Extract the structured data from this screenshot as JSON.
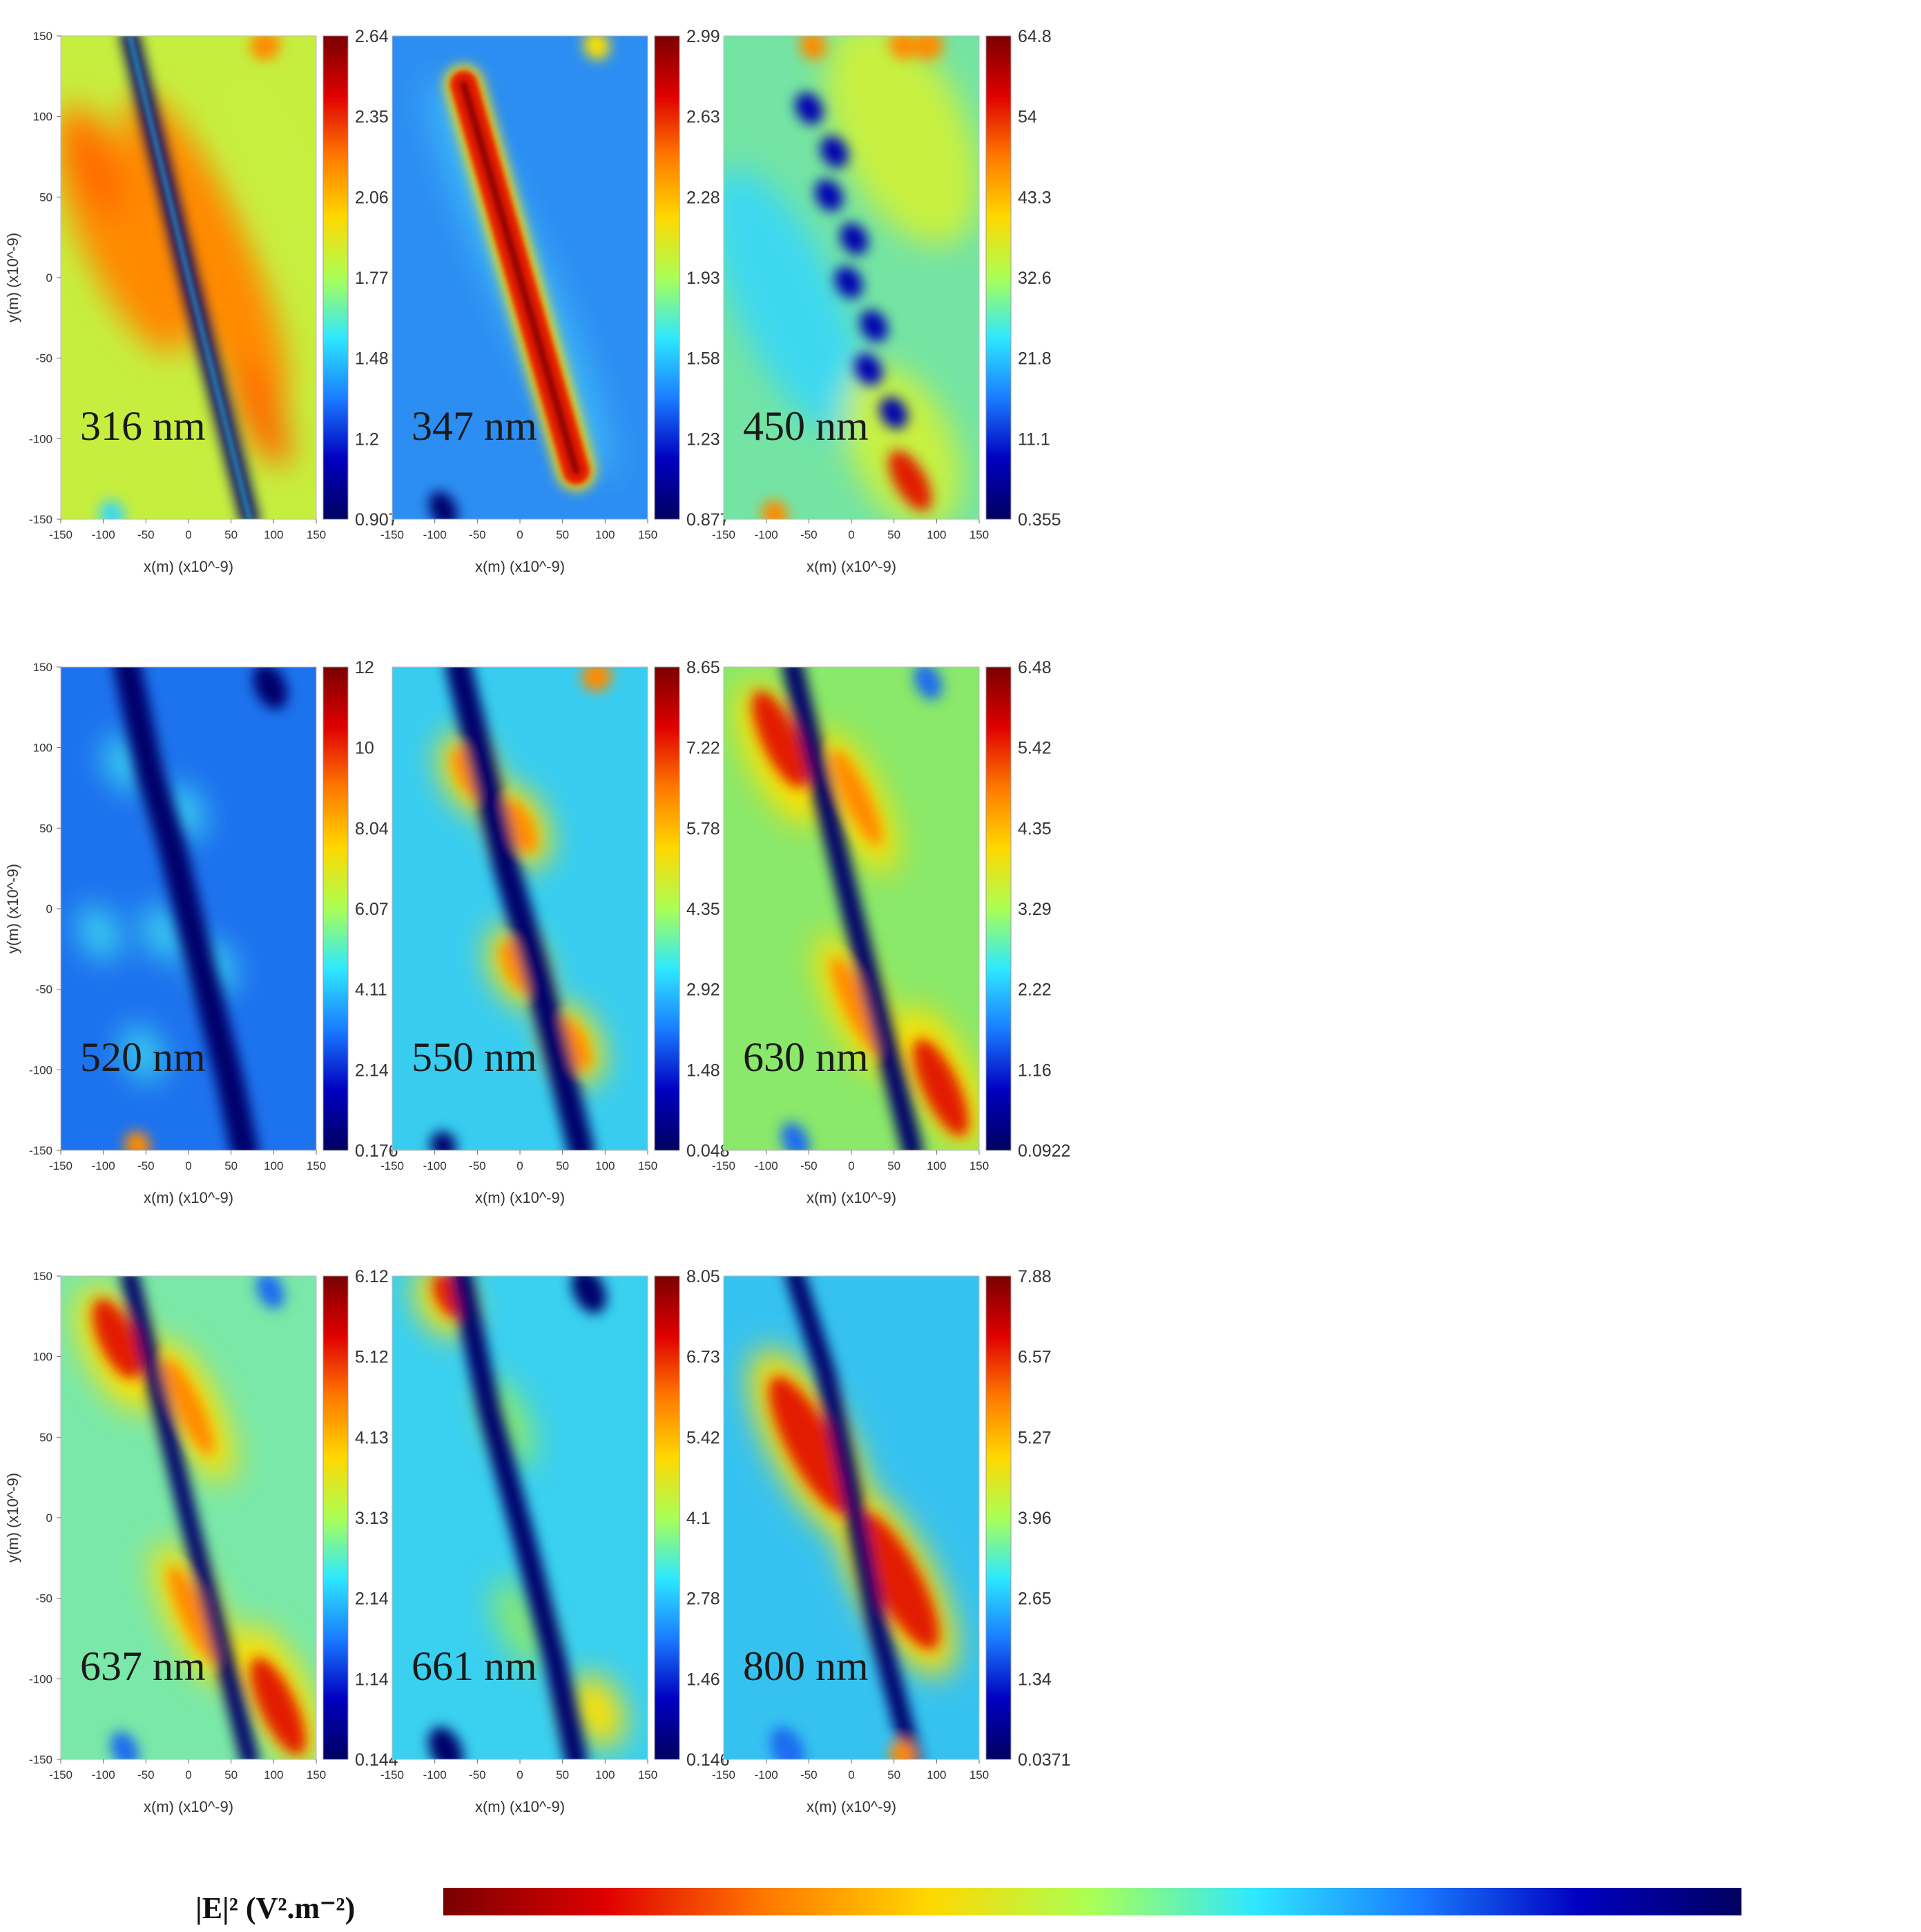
{
  "chart_data": {
    "type": "heatmap",
    "quantity_label": "|E|² (V².m⁻²)",
    "colormap": [
      "#7a0000",
      "#e00000",
      "#ff7a00",
      "#ffd800",
      "#aaff55",
      "#2ee8ff",
      "#1a7cff",
      "#0000c0",
      "#000060"
    ],
    "x_ticks": [
      "-150",
      "-100",
      "-50",
      "0",
      "50",
      "100",
      "150"
    ],
    "y_ticks": [
      "150",
      "100",
      "50",
      "0",
      "-50",
      "-100",
      "-150"
    ],
    "xlabel": "x(m) (x10^-9)",
    "ylabel": "y(m) (x10^-9)",
    "xlim": [
      -150,
      150
    ],
    "ylim": [
      -150,
      150
    ],
    "polarization_label": "E",
    "panels": [
      {
        "wavelength": "316 nm",
        "colorbar_ticks": [
          "2.64",
          "2.35",
          "2.06",
          "1.77",
          "1.48",
          "1.2",
          "0.907"
        ],
        "range": [
          0.907,
          2.64
        ],
        "pattern": "dipole"
      },
      {
        "wavelength": "347 nm",
        "colorbar_ticks": [
          "2.99",
          "2.63",
          "2.28",
          "1.93",
          "1.58",
          "1.23",
          "0.877"
        ],
        "range": [
          0.877,
          2.99
        ],
        "pattern": "hot-rod"
      },
      {
        "wavelength": "450 nm",
        "colorbar_ticks": [
          "64.8",
          "54",
          "43.3",
          "32.6",
          "21.8",
          "11.1",
          "0.355"
        ],
        "range": [
          0.355,
          64.8
        ],
        "pattern": "wavy"
      },
      {
        "wavelength": "520 nm",
        "colorbar_ticks": [
          "12",
          "10",
          "8.04",
          "6.07",
          "4.11",
          "2.14",
          "0.176"
        ],
        "range": [
          0.176,
          12
        ],
        "pattern": "lobes-weak"
      },
      {
        "wavelength": "550 nm",
        "colorbar_ticks": [
          "8.65",
          "7.22",
          "5.78",
          "4.35",
          "2.92",
          "1.48",
          "0.048"
        ],
        "range": [
          0.048,
          8.65
        ],
        "pattern": "lobes"
      },
      {
        "wavelength": "630 nm",
        "colorbar_ticks": [
          "6.48",
          "5.42",
          "4.35",
          "3.29",
          "2.22",
          "1.16",
          "0.0922"
        ],
        "range": [
          0.0922,
          6.48
        ],
        "pattern": "lobes-strong"
      },
      {
        "wavelength": "637 nm",
        "colorbar_ticks": [
          "6.12",
          "5.12",
          "4.13",
          "3.13",
          "2.14",
          "1.14",
          "0.144"
        ],
        "range": [
          0.144,
          6.12
        ],
        "pattern": "lobes-rippled"
      },
      {
        "wavelength": "661 nm",
        "colorbar_ticks": [
          "8.05",
          "6.73",
          "5.42",
          "4.1",
          "2.78",
          "1.46",
          "0.146"
        ],
        "range": [
          0.146,
          8.05
        ],
        "pattern": "line"
      },
      {
        "wavelength": "800 nm",
        "colorbar_ticks": [
          "7.88",
          "6.57",
          "5.27",
          "3.96",
          "2.65",
          "1.34",
          "0.0371"
        ],
        "range": [
          0.0371,
          7.88
        ],
        "pattern": "two-lobes"
      }
    ]
  }
}
